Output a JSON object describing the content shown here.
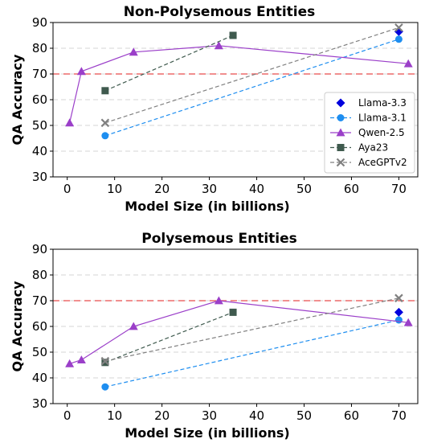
{
  "chart_data": [
    {
      "type": "line",
      "title": "Non-Polysemous Entities",
      "xlabel": "Model Size (in billions)",
      "ylabel": "QA Accuracy",
      "xlim": [
        -3,
        74
      ],
      "ylim": [
        30,
        90
      ],
      "xticks": [
        0,
        10,
        20,
        30,
        40,
        50,
        60,
        70
      ],
      "yticks": [
        30,
        40,
        50,
        60,
        70,
        80,
        90
      ],
      "grid": "horizontal dashed",
      "reference_line": {
        "y": 70,
        "color": "#f08080",
        "style": "dashed"
      },
      "legend_position": "lower-right",
      "series": [
        {
          "name": "Llama-3.3",
          "color": "#0000dd",
          "marker": "diamond",
          "linestyle": "none",
          "x": [
            70
          ],
          "y": [
            86.5
          ]
        },
        {
          "name": "Llama-3.1",
          "color": "#1e8ef0",
          "marker": "circle",
          "linestyle": "dashed",
          "x": [
            8,
            70
          ],
          "y": [
            46,
            83.5
          ]
        },
        {
          "name": "Qwen-2.5",
          "color": "#9b3fc9",
          "marker": "triangle",
          "linestyle": "solid",
          "x": [
            0.5,
            3,
            14,
            32,
            72
          ],
          "y": [
            51,
            71,
            78.5,
            81,
            74
          ]
        },
        {
          "name": "Aya23",
          "color": "#3f5a4e",
          "marker": "square",
          "linestyle": "dashed",
          "x": [
            8,
            35
          ],
          "y": [
            63.5,
            85
          ]
        },
        {
          "name": "AceGPTv2",
          "color": "#808080",
          "marker": "x",
          "linestyle": "dashed",
          "x": [
            8,
            70
          ],
          "y": [
            51,
            88
          ]
        }
      ]
    },
    {
      "type": "line",
      "title": "Polysemous Entities",
      "xlabel": "Model Size (in billions)",
      "ylabel": "QA Accuracy",
      "xlim": [
        -3,
        74
      ],
      "ylim": [
        30,
        90
      ],
      "xticks": [
        0,
        10,
        20,
        30,
        40,
        50,
        60,
        70
      ],
      "yticks": [
        30,
        40,
        50,
        60,
        70,
        80,
        90
      ],
      "grid": "horizontal dashed",
      "reference_line": {
        "y": 70,
        "color": "#f08080",
        "style": "dashed"
      },
      "series": [
        {
          "name": "Llama-3.3",
          "color": "#0000dd",
          "marker": "diamond",
          "linestyle": "none",
          "x": [
            70
          ],
          "y": [
            65.5
          ]
        },
        {
          "name": "Llama-3.1",
          "color": "#1e8ef0",
          "marker": "circle",
          "linestyle": "dashed",
          "x": [
            8,
            70
          ],
          "y": [
            36.5,
            62.5
          ]
        },
        {
          "name": "Qwen-2.5",
          "color": "#9b3fc9",
          "marker": "triangle",
          "linestyle": "solid",
          "x": [
            0.5,
            3,
            14,
            32,
            72
          ],
          "y": [
            45.5,
            47,
            60,
            70,
            61.5
          ]
        },
        {
          "name": "Aya23",
          "color": "#3f5a4e",
          "marker": "square",
          "linestyle": "dashed",
          "x": [
            8,
            35
          ],
          "y": [
            46,
            65.5
          ]
        },
        {
          "name": "AceGPTv2",
          "color": "#808080",
          "marker": "x",
          "linestyle": "dashed",
          "x": [
            8,
            70
          ],
          "y": [
            46.5,
            71
          ]
        }
      ]
    }
  ]
}
